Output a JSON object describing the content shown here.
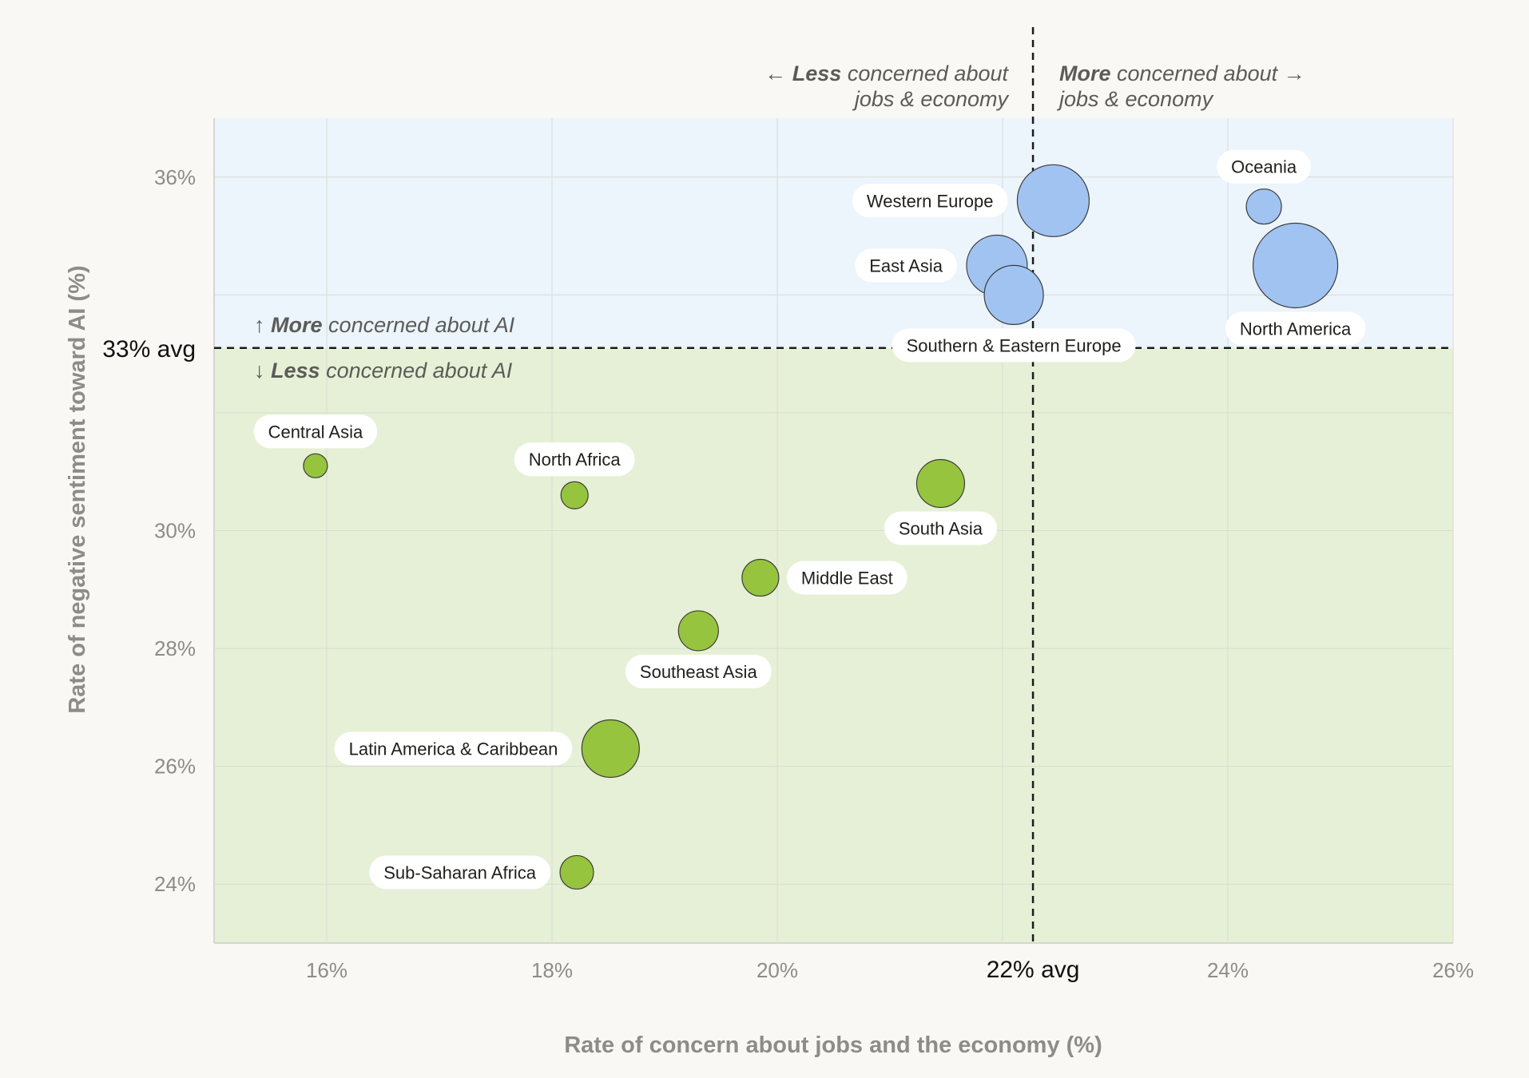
{
  "chart_data": {
    "type": "scatter",
    "title": "",
    "xlabel": "Rate of concern about jobs and the economy (%)",
    "ylabel": "Rate of negative sentiment toward AI (%)",
    "xlim": [
      15,
      26
    ],
    "ylim": [
      23,
      37
    ],
    "x_ticks": [
      16,
      18,
      20,
      22,
      24,
      26
    ],
    "x_tick_labels": [
      "16%",
      "18%",
      "20%",
      "22% avg",
      "24%",
      "26%"
    ],
    "y_ticks": [
      24,
      26,
      28,
      30,
      36
    ],
    "y_tick_labels": [
      "24%",
      "26%",
      "28%",
      "30%",
      "36%"
    ],
    "x_avg": 22.27,
    "y_avg": 33.1,
    "y_avg_label": "33% avg",
    "quadrant_labels": {
      "left_bold": "Less",
      "left_rest": "concerned about",
      "left_line2": "jobs & economy",
      "right_bold": "More",
      "right_rest": "concerned about",
      "right_line2": "jobs & economy",
      "top_bold": "More",
      "top_rest": "concerned about AI",
      "bottom_bold": "Less",
      "bottom_rest": "concerned about AI"
    },
    "colors": {
      "above_avg": "#a0c3f2",
      "below_avg": "#96c43f",
      "above_band": "#ecf4fc",
      "below_band": "#e6f0d6"
    },
    "points": [
      {
        "name": "Western Europe",
        "x": 22.45,
        "y": 35.6,
        "size": 45,
        "group": "above",
        "label_pos": "left"
      },
      {
        "name": "East Asia",
        "x": 21.95,
        "y": 34.5,
        "size": 38,
        "group": "above",
        "label_pos": "left"
      },
      {
        "name": "Southern & Eastern Europe",
        "x": 22.1,
        "y": 34.0,
        "size": 37,
        "group": "above",
        "label_pos": "below"
      },
      {
        "name": "Oceania",
        "x": 24.32,
        "y": 35.5,
        "size": 22,
        "group": "above",
        "label_pos": "above"
      },
      {
        "name": "North America",
        "x": 24.6,
        "y": 34.5,
        "size": 53,
        "group": "above",
        "label_pos": "below"
      },
      {
        "name": "Central Asia",
        "x": 15.9,
        "y": 31.1,
        "size": 15,
        "group": "below",
        "label_pos": "above"
      },
      {
        "name": "North Africa",
        "x": 18.2,
        "y": 30.6,
        "size": 17,
        "group": "below",
        "label_pos": "above"
      },
      {
        "name": "South Asia",
        "x": 21.45,
        "y": 30.8,
        "size": 30,
        "group": "below",
        "label_pos": "below"
      },
      {
        "name": "Middle East",
        "x": 19.85,
        "y": 29.2,
        "size": 23,
        "group": "below",
        "label_pos": "right"
      },
      {
        "name": "Southeast Asia",
        "x": 19.3,
        "y": 28.3,
        "size": 25,
        "group": "below",
        "label_pos": "below"
      },
      {
        "name": "Latin America & Caribbean",
        "x": 18.52,
        "y": 26.3,
        "size": 36,
        "group": "below",
        "label_pos": "left"
      },
      {
        "name": "Sub-Saharan Africa",
        "x": 18.22,
        "y": 24.2,
        "size": 21,
        "group": "below",
        "label_pos": "left"
      }
    ]
  }
}
